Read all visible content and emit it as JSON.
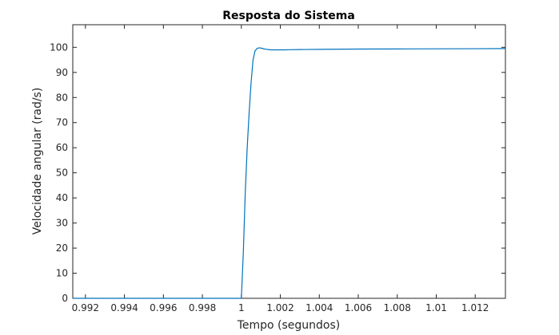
{
  "chart_data": {
    "type": "line",
    "title": "Resposta do Sistema",
    "xlabel": "Tempo (segundos)",
    "ylabel": "Velocidade angular (rad/s)",
    "xlim": [
      0.99135,
      1.01355
    ],
    "ylim": [
      0,
      109
    ],
    "xticks": [
      0.992,
      0.994,
      0.996,
      0.998,
      1.0,
      1.002,
      1.004,
      1.006,
      1.008,
      1.01,
      1.012
    ],
    "xtick_labels": [
      "0.992",
      "0.994",
      "0.996",
      "0.998",
      "1",
      "1.002",
      "1.004",
      "1.006",
      "1.008",
      "1.01",
      "1.012"
    ],
    "yticks": [
      0,
      10,
      20,
      30,
      40,
      50,
      60,
      70,
      80,
      90,
      100
    ],
    "ytick_labels": [
      "0",
      "10",
      "20",
      "30",
      "40",
      "50",
      "60",
      "70",
      "80",
      "90",
      "100"
    ],
    "grid": false,
    "colors": {
      "line": "#0072bd",
      "axes": "#262626"
    },
    "series": [
      {
        "x": [
          0.99135,
          0.9995,
          1.0,
          1.0001,
          1.0002,
          1.0003,
          1.0004,
          1.0005,
          1.0006,
          1.0007,
          1.0008,
          1.0009,
          1.001,
          1.0011,
          1.0012,
          1.0013,
          1.0014,
          1.0015,
          1.0016,
          1.0018,
          1.002,
          1.0022,
          1.0025,
          1.003,
          1.004,
          1.006,
          1.008,
          1.01,
          1.012,
          1.01355
        ],
        "y": [
          0,
          0,
          0,
          18,
          42,
          60,
          74,
          86,
          95,
          98.5,
          99.5,
          99.8,
          99.7,
          99.5,
          99.3,
          99.2,
          99.1,
          99.0,
          99.0,
          99.0,
          99.0,
          99.0,
          99.05,
          99.1,
          99.2,
          99.3,
          99.35,
          99.4,
          99.45,
          99.5
        ]
      }
    ]
  }
}
